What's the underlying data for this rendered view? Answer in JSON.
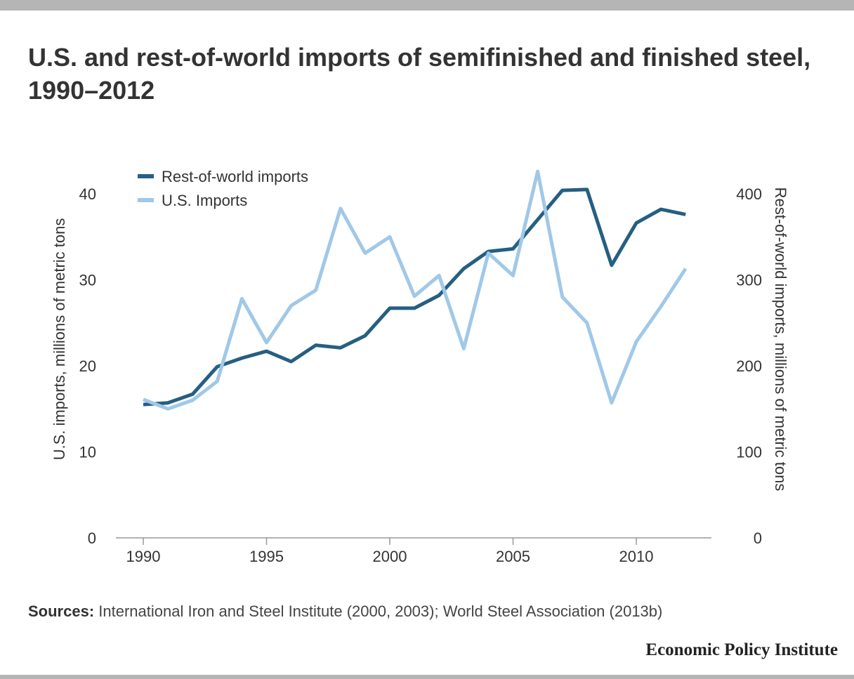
{
  "title": "U.S. and rest-of-world imports of semifinished and finished steel, 1990–2012",
  "sources": {
    "label": "Sources:",
    "text": " International Iron and Steel Institute (2000, 2003); World Steel Association (2013b)"
  },
  "brand": "Economic Policy Institute",
  "chart_data": {
    "type": "line",
    "x": [
      1990,
      1991,
      1992,
      1993,
      1994,
      1995,
      1996,
      1997,
      1998,
      1999,
      2000,
      2001,
      2002,
      2003,
      2004,
      2005,
      2006,
      2007,
      2008,
      2009,
      2010,
      2011,
      2012
    ],
    "x_ticks": [
      1990,
      1995,
      2000,
      2005,
      2010
    ],
    "x_tick_labels": [
      "1990",
      "1995",
      "2000",
      "2005",
      "2010"
    ],
    "ylabel_left": "U.S. imports, millions of metric tons",
    "ylabel_right": "Rest-of-world imports, millions of metric tons",
    "ylim_left": [
      0,
      40
    ],
    "ylim_right": [
      0,
      400
    ],
    "yticks_left": [
      "0",
      "10",
      "20",
      "30",
      "40"
    ],
    "yticks_right": [
      "0",
      "100",
      "200",
      "300",
      "400"
    ],
    "grid": false,
    "legend_position": "top-left",
    "series": [
      {
        "name": "Rest-of-world imports",
        "axis": "right",
        "color": "#255f82",
        "values": [
          155,
          157,
          167,
          199,
          209,
          217,
          205,
          224,
          221,
          235,
          267,
          267,
          282,
          313,
          333,
          336,
          370,
          404,
          405,
          317,
          366,
          382,
          376
        ]
      },
      {
        "name": "U.S. Imports",
        "axis": "left",
        "color": "#a0c8e8",
        "values": [
          16.1,
          15.0,
          16.0,
          18.2,
          27.8,
          22.7,
          27.0,
          28.8,
          38.3,
          33.1,
          35.0,
          28.1,
          30.5,
          22.0,
          33.1,
          30.5,
          42.6,
          28.0,
          25.0,
          15.7,
          22.8,
          26.9,
          31.3
        ]
      }
    ]
  }
}
